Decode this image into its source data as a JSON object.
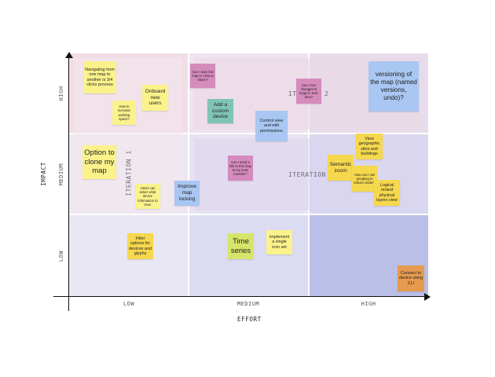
{
  "axes": {
    "x_title": "EFFORT",
    "y_title": "IMPACT",
    "x_levels": [
      "LOW",
      "MEDIUM",
      "HIGH"
    ],
    "y_levels": [
      "HIGH",
      "MEDIUM",
      "LOW"
    ]
  },
  "iterations": {
    "iteration1": "ITERATION 1",
    "iteration2_left": "ITE",
    "iteration2_right": "2",
    "iteration3": "ITERATION 3"
  },
  "colors": {
    "yellow": "#fbf28c",
    "pink": "#d68bbd",
    "teal": "#7fc4b4",
    "blue": "#a9c7f2",
    "orange": "#e69a4f",
    "lime": "#d6e56a"
  },
  "notes": {
    "navigating": "Navigating from one map to another is 3/4 clicks process",
    "increase_space": "How to increase working space?",
    "onboard": "Onboard new users",
    "save_visio": "Can I save this map in Visio to share?",
    "custom_device": "Add a custom device",
    "control_view": "Control view and edit permissions",
    "see_changes": "Can I see changes to maps in real-time?",
    "versioning": "versioning of the map (named versions, undo)?",
    "clone": "Option to clone my map",
    "device_info": "Users can select what device information to view.",
    "improve_locking": "Improve map locking",
    "send_link": "Can I send a link to this map to my team member?",
    "semantic_zoom": "Semantic zoom",
    "geographic": "View geographic sites and buildings",
    "grouping": "How can I use grouping to reduce clutter?",
    "logical": "Logical or/and physical layers view",
    "filter": "Filter options for devices and glyphs",
    "time_series": "Time series",
    "icon_set": "Implement a single icon set",
    "cli": "Connect to device using CLI"
  }
}
